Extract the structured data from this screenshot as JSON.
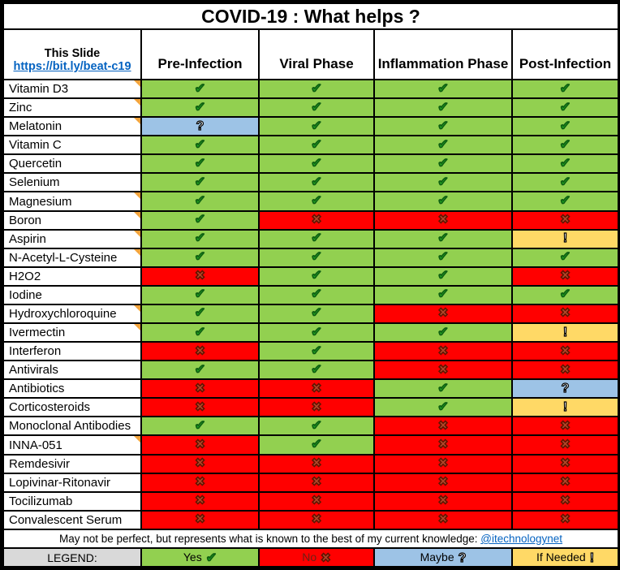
{
  "title": "COVID-19 : What helps ?",
  "header": {
    "slide_label": "This Slide",
    "slide_link": "https://bit.ly/beat-c19",
    "columns": [
      "Pre-Infection",
      "Viral Phase",
      "Inflammation Phase",
      "Post-Infection"
    ]
  },
  "statuses": {
    "yes": {
      "glyph": "✔",
      "bg": "#92D050",
      "fg": "#21A121"
    },
    "no": {
      "glyph": "✖",
      "bg": "#FF0000",
      "fg": "#B2472B"
    },
    "maybe": {
      "glyph": "?",
      "bg": "#9DC3E6",
      "fg": "#FFFFFF"
    },
    "if_needed": {
      "glyph": "!",
      "bg": "#FFD966",
      "fg": "#FFFFFF"
    }
  },
  "rows": [
    {
      "label": "Vitamin D3",
      "note_marker": true,
      "cells": [
        "yes",
        "yes",
        "yes",
        "yes"
      ]
    },
    {
      "label": "Zinc",
      "note_marker": true,
      "cells": [
        "yes",
        "yes",
        "yes",
        "yes"
      ]
    },
    {
      "label": "Melatonin",
      "note_marker": true,
      "cells": [
        "maybe",
        "yes",
        "yes",
        "yes"
      ]
    },
    {
      "label": "Vitamin C",
      "note_marker": false,
      "cells": [
        "yes",
        "yes",
        "yes",
        "yes"
      ]
    },
    {
      "label": "Quercetin",
      "note_marker": false,
      "cells": [
        "yes",
        "yes",
        "yes",
        "yes"
      ]
    },
    {
      "label": "Selenium",
      "note_marker": false,
      "cells": [
        "yes",
        "yes",
        "yes",
        "yes"
      ]
    },
    {
      "label": "Magnesium",
      "note_marker": true,
      "cells": [
        "yes",
        "yes",
        "yes",
        "yes"
      ]
    },
    {
      "label": "Boron",
      "note_marker": true,
      "cells": [
        "yes",
        "no",
        "no",
        "no"
      ]
    },
    {
      "label": "Aspirin",
      "note_marker": true,
      "cells": [
        "yes",
        "yes",
        "yes",
        "if_needed"
      ]
    },
    {
      "label": "N-Acetyl-L-Cysteine",
      "note_marker": true,
      "cells": [
        "yes",
        "yes",
        "yes",
        "yes"
      ]
    },
    {
      "label": "H2O2",
      "note_marker": false,
      "cells": [
        "no",
        "yes",
        "yes",
        "no"
      ]
    },
    {
      "label": "Iodine",
      "note_marker": false,
      "cells": [
        "yes",
        "yes",
        "yes",
        "yes"
      ]
    },
    {
      "label": "Hydroxychloroquine",
      "note_marker": true,
      "cells": [
        "yes",
        "yes",
        "no",
        "no"
      ]
    },
    {
      "label": "Ivermectin",
      "note_marker": true,
      "cells": [
        "yes",
        "yes",
        "yes",
        "if_needed"
      ]
    },
    {
      "label": "Interferon",
      "note_marker": false,
      "cells": [
        "no",
        "yes",
        "no",
        "no"
      ]
    },
    {
      "label": "Antivirals",
      "note_marker": false,
      "cells": [
        "yes",
        "yes",
        "no",
        "no"
      ]
    },
    {
      "label": "Antibiotics",
      "note_marker": false,
      "cells": [
        "no",
        "no",
        "yes",
        "maybe"
      ]
    },
    {
      "label": "Corticosteroids",
      "note_marker": false,
      "cells": [
        "no",
        "no",
        "yes",
        "if_needed"
      ]
    },
    {
      "label": "Monoclonal Antibodies",
      "note_marker": false,
      "cells": [
        "yes",
        "yes",
        "no",
        "no"
      ]
    },
    {
      "label": "INNA-051",
      "note_marker": true,
      "cells": [
        "no",
        "yes",
        "no",
        "no"
      ]
    },
    {
      "label": "Remdesivir",
      "note_marker": false,
      "cells": [
        "no",
        "no",
        "no",
        "no"
      ]
    },
    {
      "label": "Lopivinar-Ritonavir",
      "note_marker": false,
      "cells": [
        "no",
        "no",
        "no",
        "no"
      ]
    },
    {
      "label": "Tocilizumab",
      "note_marker": false,
      "cells": [
        "no",
        "no",
        "no",
        "no"
      ]
    },
    {
      "label": "Convalescent Serum",
      "note_marker": false,
      "cells": [
        "no",
        "no",
        "no",
        "no"
      ]
    }
  ],
  "footer": {
    "text": "May not be perfect, but represents what is known to the best of my current knowledge:",
    "link": "@itechnologynet"
  },
  "legend": {
    "label": "LEGEND:",
    "items": [
      {
        "label": "Yes",
        "status": "yes"
      },
      {
        "label": "No",
        "status": "no"
      },
      {
        "label": "Maybe",
        "status": "maybe"
      },
      {
        "label": "If Needed",
        "status": "if_needed"
      }
    ]
  }
}
